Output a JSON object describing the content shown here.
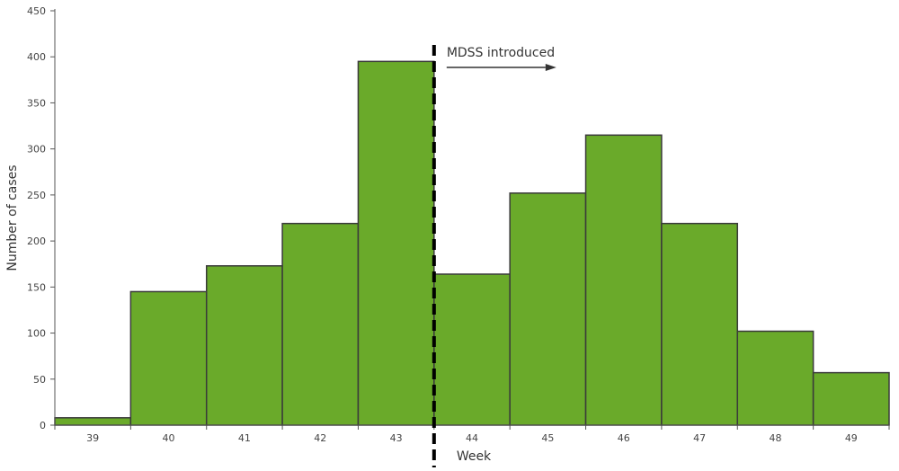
{
  "chart_data": {
    "type": "bar",
    "categories": [
      "39",
      "40",
      "41",
      "42",
      "43",
      "44",
      "45",
      "46",
      "47",
      "48",
      "49"
    ],
    "values": [
      8,
      145,
      173,
      219,
      395,
      164,
      252,
      315,
      219,
      102,
      57
    ],
    "xlabel": "Week",
    "ylabel": "Number of cases",
    "ylim": [
      0,
      450
    ],
    "yticks": [
      0,
      50,
      100,
      150,
      200,
      250,
      300,
      350,
      400,
      450
    ],
    "grid": false,
    "bar_color": "#6aaa2a",
    "bar_edge_color": "#3a3a3a",
    "annotation": {
      "text": "MDSS introduced",
      "between": [
        "43",
        "44"
      ],
      "style": "dashed-vertical-line-with-right-arrow"
    }
  }
}
